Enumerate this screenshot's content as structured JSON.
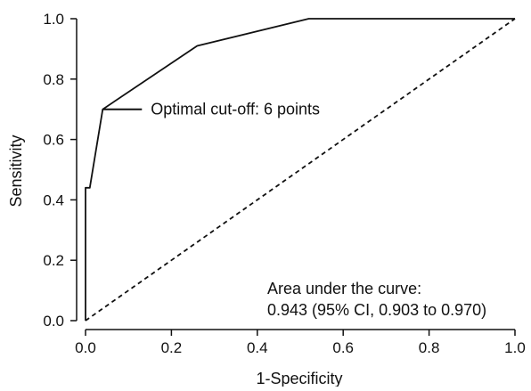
{
  "chart_data": {
    "type": "line",
    "xlabel": "1-Specificity",
    "ylabel": "Sensitivity",
    "xlim": [
      0.0,
      1.0
    ],
    "ylim": [
      0.0,
      1.0
    ],
    "x_ticks": [
      "0.0",
      "0.2",
      "0.4",
      "0.6",
      "0.8",
      "1.0"
    ],
    "y_ticks": [
      "0.0",
      "0.2",
      "0.4",
      "0.6",
      "0.8",
      "1.0"
    ],
    "grid": false,
    "series": [
      {
        "style": "solid",
        "color": "#111111",
        "points": [
          {
            "x": 0.0,
            "y": 0.0
          },
          {
            "x": 0.0,
            "y": 0.44
          },
          {
            "x": 0.01,
            "y": 0.44
          },
          {
            "x": 0.04,
            "y": 0.7
          },
          {
            "x": 0.26,
            "y": 0.91
          },
          {
            "x": 0.52,
            "y": 1.0
          },
          {
            "x": 1.0,
            "y": 1.0
          }
        ]
      },
      {
        "style": "dashed",
        "color": "#111111",
        "points": [
          {
            "x": 0.0,
            "y": 0.0
          },
          {
            "x": 1.0,
            "y": 1.0
          }
        ]
      }
    ],
    "annotations": [
      {
        "text": "Optimal cut-off: 6 points",
        "point": {
          "x": 0.04,
          "y": 0.7
        }
      }
    ],
    "auc_text": {
      "line1": "Area under the curve:",
      "line2": "0.943 (95% CI, 0.903 to 0.970)"
    }
  }
}
